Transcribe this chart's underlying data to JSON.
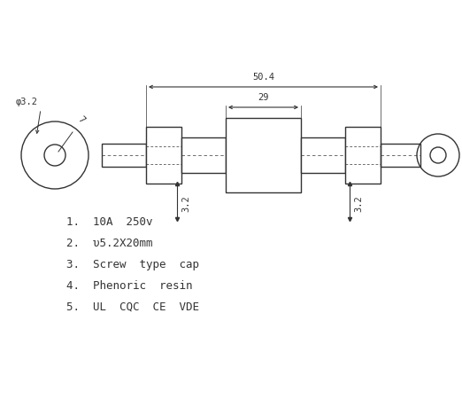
{
  "bg_color": "#ffffff",
  "line_color": "#333333",
  "text_color": "#333333",
  "specs": [
    "1.  10A  250v",
    "2.  υ5.2X20mm",
    "3.  Screw  type  cap",
    "4.  Phenoric  resin",
    "5.  UL  CQC  CE  VDE"
  ],
  "dim_50_4": "50.4",
  "dim_29": "29",
  "dim_3_2": "3.2",
  "dim_phi_3_2": "φ3.2",
  "dim_phi_7": "7",
  "font_size_spec": 9,
  "font_size_dim": 7.5
}
